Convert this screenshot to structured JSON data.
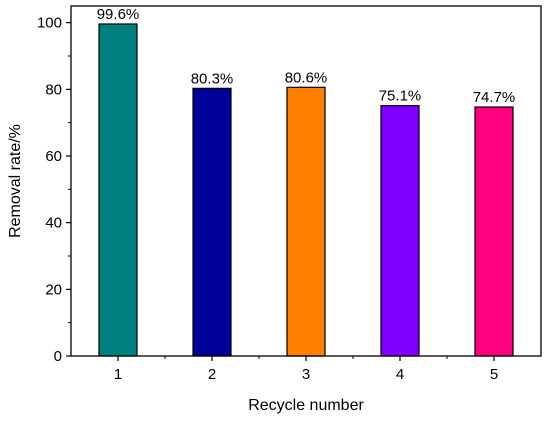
{
  "chart_data": {
    "type": "bar",
    "title": "",
    "xlabel": "Recycle number",
    "ylabel": "Removal rate/%",
    "categories": [
      "1",
      "2",
      "3",
      "4",
      "5"
    ],
    "values": [
      99.6,
      80.3,
      80.6,
      75.1,
      74.7
    ],
    "data_labels": [
      "99.6%",
      "80.3%",
      "80.6%",
      "75.1%",
      "74.7%"
    ],
    "ylim": [
      0,
      105
    ],
    "yticks": [
      0,
      20,
      40,
      60,
      80,
      100
    ],
    "grid": false,
    "legend": "none",
    "bar_colors": [
      "#008080",
      "#000099",
      "#ff8000",
      "#8000ff",
      "#ff0080"
    ]
  }
}
